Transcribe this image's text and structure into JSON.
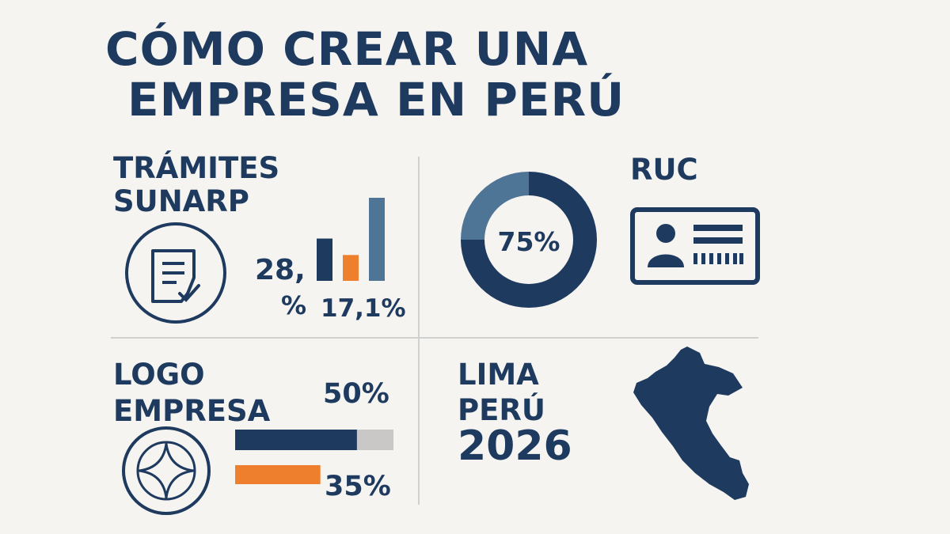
{
  "title": {
    "line1": "CÓMO CREAR UNA",
    "line2": "EMPRESA EN PERÚ"
  },
  "tramites": {
    "heading_line1": "TRÁMITES",
    "heading_line2": "SUNARP",
    "icon": "document-check-icon",
    "value_a_main": "28,",
    "value_a_pct": "%",
    "value_b": "17,1%"
  },
  "ruc": {
    "heading": "RUC",
    "donut_label": "75%",
    "icon": "id-card-icon"
  },
  "logo": {
    "heading_line1": "LOGO",
    "heading_line2": "EMPRESA",
    "icon": "logo-emblem-icon",
    "bar1_label": "50%",
    "bar2_label": "35%"
  },
  "lima": {
    "line1": "LIMA",
    "line2": "PERÚ",
    "year": "2026",
    "icon": "peru-map-icon"
  },
  "colors": {
    "navy": "#1e3a5f",
    "steel": "#4f7596",
    "orange": "#ee7f2d",
    "gray": "#c9c8c6",
    "background": "#f5f4f1"
  },
  "chart_data": [
    {
      "type": "bar",
      "categories": [
        "",
        "",
        ""
      ],
      "values": [
        28,
        17.1,
        55
      ],
      "colors": [
        "#1e3a5f",
        "#ee7f2d",
        "#4f7596"
      ]
    },
    {
      "type": "pie",
      "values": [
        75,
        25
      ],
      "colors": [
        "#1e3a5f",
        "#4f7596"
      ]
    },
    {
      "type": "bar",
      "orientation": "horizontal",
      "values": [
        50,
        35
      ],
      "colors": [
        "#1e3a5f",
        "#ee7f2d"
      ],
      "xlim": [
        0,
        65
      ]
    }
  ]
}
